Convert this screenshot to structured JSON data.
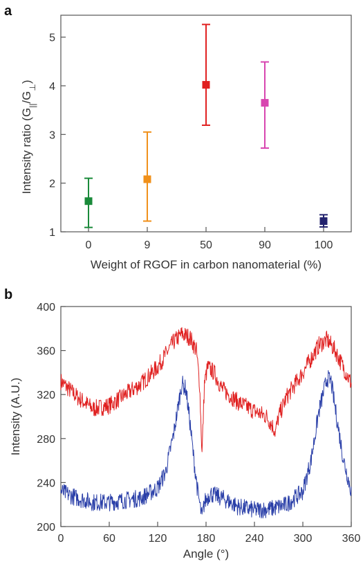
{
  "chart_data": [
    {
      "panel": "a",
      "type": "scatter",
      "categories": [
        "0",
        "9",
        "50",
        "90",
        "100"
      ],
      "xlabel": "Weight of RGOF in carbon nanomaterial (%)",
      "ylabel_main": "Intensity ratio (G",
      "ylabel_sub1": "||",
      "ylabel_mid": "/G",
      "ylabel_sub2": "⊥",
      "ylabel_end": ")",
      "ylim": [
        1,
        5.45
      ],
      "yticks": [
        1,
        2,
        3,
        4,
        5
      ],
      "points": [
        {
          "category": "0",
          "value": 1.63,
          "err_low": 1.09,
          "err_high": 2.1,
          "color": "#1a8a3a"
        },
        {
          "category": "9",
          "value": 2.08,
          "err_low": 1.22,
          "err_high": 3.05,
          "color": "#f0901a"
        },
        {
          "category": "50",
          "value": 4.02,
          "err_low": 3.19,
          "err_high": 5.26,
          "color": "#e02020"
        },
        {
          "category": "90",
          "value": 3.65,
          "err_low": 2.72,
          "err_high": 4.49,
          "color": "#d845b0"
        },
        {
          "category": "100",
          "value": 1.22,
          "err_low": 1.1,
          "err_high": 1.35,
          "color": "#23236e"
        }
      ]
    },
    {
      "panel": "b",
      "type": "line",
      "xlabel": "Angle (°)",
      "ylabel": "Intensity (A.U.)",
      "xlim": [
        0,
        360
      ],
      "ylim": [
        200,
        400
      ],
      "xticks": [
        0,
        60,
        120,
        180,
        240,
        300,
        360
      ],
      "yticks": [
        200,
        240,
        280,
        320,
        360,
        400
      ],
      "series": [
        {
          "color": "#e02020",
          "x": [
            0,
            20,
            40,
            60,
            80,
            100,
            120,
            140,
            150,
            160,
            168,
            172,
            175,
            178,
            182,
            190,
            200,
            220,
            240,
            255,
            262,
            266,
            270,
            280,
            300,
            320,
            330,
            340,
            350,
            360
          ],
          "values": [
            332,
            318,
            307,
            310,
            320,
            330,
            345,
            368,
            375,
            372,
            360,
            330,
            266,
            330,
            345,
            340,
            325,
            313,
            305,
            300,
            292,
            286,
            300,
            318,
            340,
            365,
            370,
            360,
            345,
            330
          ]
        },
        {
          "color": "#2a3fa8",
          "x": [
            0,
            20,
            40,
            60,
            80,
            100,
            120,
            130,
            140,
            150,
            155,
            160,
            165,
            170,
            175,
            178,
            185,
            200,
            220,
            240,
            260,
            280,
            300,
            310,
            320,
            330,
            335,
            340,
            350,
            360
          ],
          "values": [
            232,
            226,
            222,
            222,
            224,
            226,
            235,
            250,
            285,
            330,
            325,
            295,
            260,
            230,
            208,
            222,
            230,
            226,
            218,
            215,
            216,
            220,
            232,
            260,
            305,
            335,
            332,
            308,
            262,
            232
          ]
        }
      ]
    }
  ]
}
